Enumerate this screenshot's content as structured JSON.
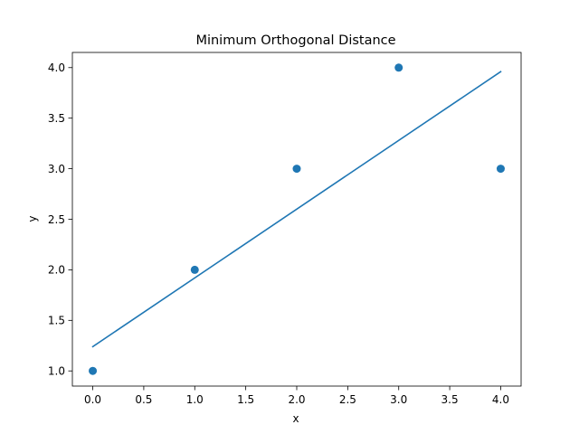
{
  "chart_data": {
    "type": "scatter",
    "title": "Minimum Orthogonal Distance",
    "xlabel": "x",
    "ylabel": "y",
    "xlim": [
      -0.2,
      4.2
    ],
    "ylim": [
      0.85,
      4.15
    ],
    "x_ticks": [
      0.0,
      0.5,
      1.0,
      1.5,
      2.0,
      2.5,
      3.0,
      3.5,
      4.0
    ],
    "y_ticks": [
      1.0,
      1.5,
      2.0,
      2.5,
      3.0,
      3.5,
      4.0
    ],
    "x_tick_labels": [
      "0.0",
      "0.5",
      "1.0",
      "1.5",
      "2.0",
      "2.5",
      "3.0",
      "3.5",
      "4.0"
    ],
    "y_tick_labels": [
      "1.0",
      "1.5",
      "2.0",
      "2.5",
      "3.0",
      "3.5",
      "4.0"
    ],
    "grid": false,
    "color": "#1f77b4",
    "points": [
      {
        "x": 0,
        "y": 1
      },
      {
        "x": 1,
        "y": 2
      },
      {
        "x": 2,
        "y": 3
      },
      {
        "x": 3,
        "y": 4
      },
      {
        "x": 4,
        "y": 3
      }
    ],
    "fit_line": {
      "x": [
        0,
        4
      ],
      "y": [
        1.24,
        3.96
      ]
    }
  }
}
